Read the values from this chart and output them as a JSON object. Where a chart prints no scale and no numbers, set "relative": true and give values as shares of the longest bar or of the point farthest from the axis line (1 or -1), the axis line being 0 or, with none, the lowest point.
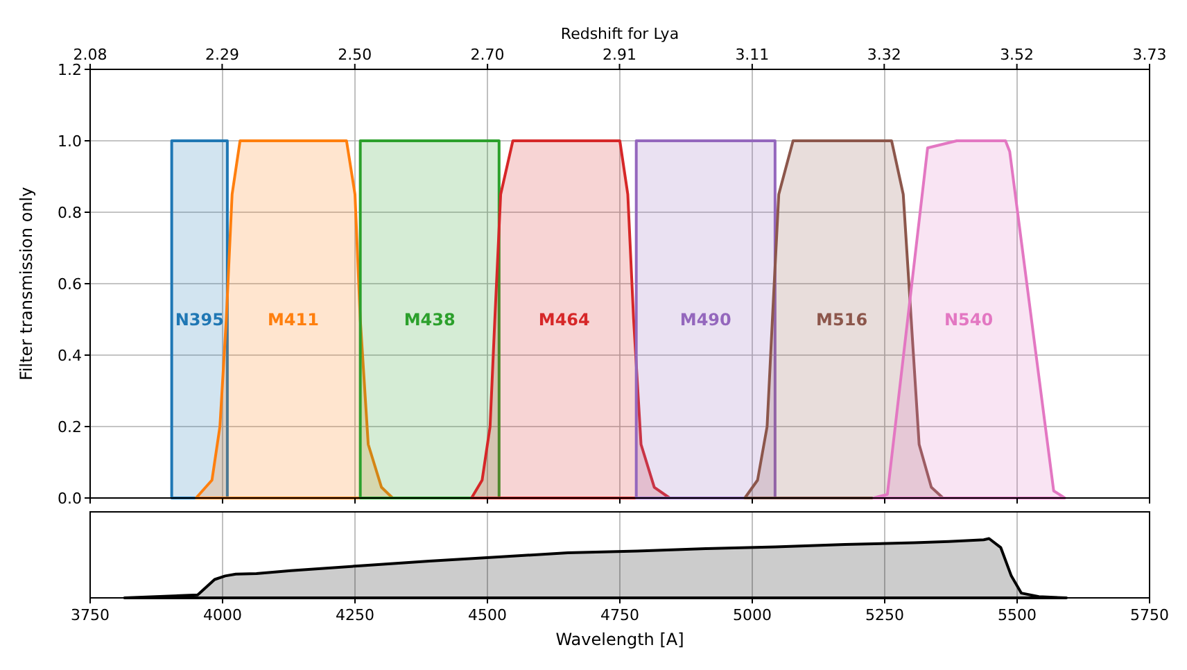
{
  "chart_data": [
    {
      "type": "area",
      "x2label": "Redshift for Lya",
      "ylabel": "Filter transmission only",
      "xlim": [
        3750,
        5750
      ],
      "xticks": [
        {
          "value": 3750,
          "label": null
        },
        {
          "value": 4000,
          "label": null
        },
        {
          "value": 4250,
          "label": null
        },
        {
          "value": 4500,
          "label": null
        },
        {
          "value": 4750,
          "label": null
        },
        {
          "value": 5000,
          "label": null
        },
        {
          "value": 5250,
          "label": null
        },
        {
          "value": 5500,
          "label": null
        },
        {
          "value": 5750,
          "label": null
        }
      ],
      "x2lim": [
        2.084,
        3.729
      ],
      "x2ticks": [
        {
          "value": 2.084,
          "label": "2.08"
        },
        {
          "value": 2.289,
          "label": "2.29"
        },
        {
          "value": 2.495,
          "label": "2.50"
        },
        {
          "value": 2.701,
          "label": "2.70"
        },
        {
          "value": 2.906,
          "label": "2.91"
        },
        {
          "value": 3.112,
          "label": "3.11"
        },
        {
          "value": 3.317,
          "label": "3.32"
        },
        {
          "value": 3.523,
          "label": "3.52"
        },
        {
          "value": 3.729,
          "label": "3.73"
        }
      ],
      "ylim": [
        0,
        1.2
      ],
      "yticks": [
        {
          "value": 0,
          "label": "0.0"
        },
        {
          "value": 0.2,
          "label": "0.2"
        },
        {
          "value": 0.4,
          "label": "0.4"
        },
        {
          "value": 0.6,
          "label": "0.6"
        },
        {
          "value": 0.8,
          "label": "0.8"
        },
        {
          "value": 1,
          "label": "1.0"
        },
        {
          "value": 1.2,
          "label": "1.2"
        }
      ],
      "grid": true,
      "legend": false,
      "tick_labels": "y",
      "series": [
        {
          "name": "N395",
          "color": "#1f77b4",
          "x": [
            3904,
            3904,
            4009,
            4009
          ],
          "values": [
            0,
            1,
            1,
            0
          ]
        },
        {
          "name": "M411",
          "color": "#ff7f0e",
          "x": [
            3950,
            3980,
            3995,
            4007,
            4018,
            4033,
            4234,
            4250,
            4260,
            4275,
            4300,
            4321
          ],
          "values": [
            0,
            0.05,
            0.2,
            0.5,
            0.85,
            1,
            1,
            0.85,
            0.5,
            0.15,
            0.03,
            0
          ]
        },
        {
          "name": "M438",
          "color": "#2ca02c",
          "x": [
            4260,
            4260,
            4522,
            4522
          ],
          "values": [
            0,
            1,
            1,
            0
          ]
        },
        {
          "name": "M464",
          "color": "#d62728",
          "x": [
            4470,
            4490,
            4505,
            4514,
            4525,
            4548,
            4750,
            4765,
            4776,
            4790,
            4815,
            4844
          ],
          "values": [
            0,
            0.05,
            0.2,
            0.5,
            0.85,
            1,
            1,
            0.85,
            0.5,
            0.15,
            0.03,
            0
          ]
        },
        {
          "name": "M490",
          "color": "#9467bd",
          "x": [
            4781,
            4781,
            5043,
            5043
          ],
          "values": [
            0,
            1,
            1,
            0
          ]
        },
        {
          "name": "M516",
          "color": "#8c564b",
          "x": [
            4986,
            5010,
            5028,
            5038,
            5050,
            5077,
            5263,
            5285,
            5300,
            5315,
            5338,
            5360
          ],
          "values": [
            0,
            0.05,
            0.2,
            0.5,
            0.85,
            1,
            1,
            0.85,
            0.5,
            0.15,
            0.03,
            0
          ]
        },
        {
          "name": "N540",
          "color": "#e377c2",
          "x": [
            5229,
            5255,
            5331,
            5386,
            5478,
            5486,
            5569,
            5590
          ],
          "values": [
            0,
            0.01,
            0.98,
            1,
            1,
            0.97,
            0.02,
            0
          ]
        }
      ]
    },
    {
      "type": "area",
      "xlabel": "Wavelength [A]",
      "xlim": [
        3750,
        5750
      ],
      "xticks": [
        3750,
        4000,
        4250,
        4500,
        4750,
        5000,
        5250,
        5500,
        5750
      ],
      "relative": true,
      "grid": "x",
      "tick_labels": "x",
      "series": [
        {
          "color": "#000000",
          "x": [
            3815,
            3953,
            3985,
            4005,
            4025,
            4064,
            4129,
            4260,
            4390,
            4521,
            4652,
            4783,
            4913,
            5044,
            5175,
            5306,
            5371,
            5437,
            5447,
            5469,
            5489,
            5508,
            5541,
            5593
          ],
          "values": [
            0,
            0.05,
            0.31,
            0.37,
            0.4,
            0.41,
            0.46,
            0.54,
            0.62,
            0.69,
            0.76,
            0.79,
            0.83,
            0.86,
            0.9,
            0.93,
            0.95,
            0.98,
            1,
            0.85,
            0.37,
            0.08,
            0.02,
            0
          ]
        }
      ]
    }
  ]
}
